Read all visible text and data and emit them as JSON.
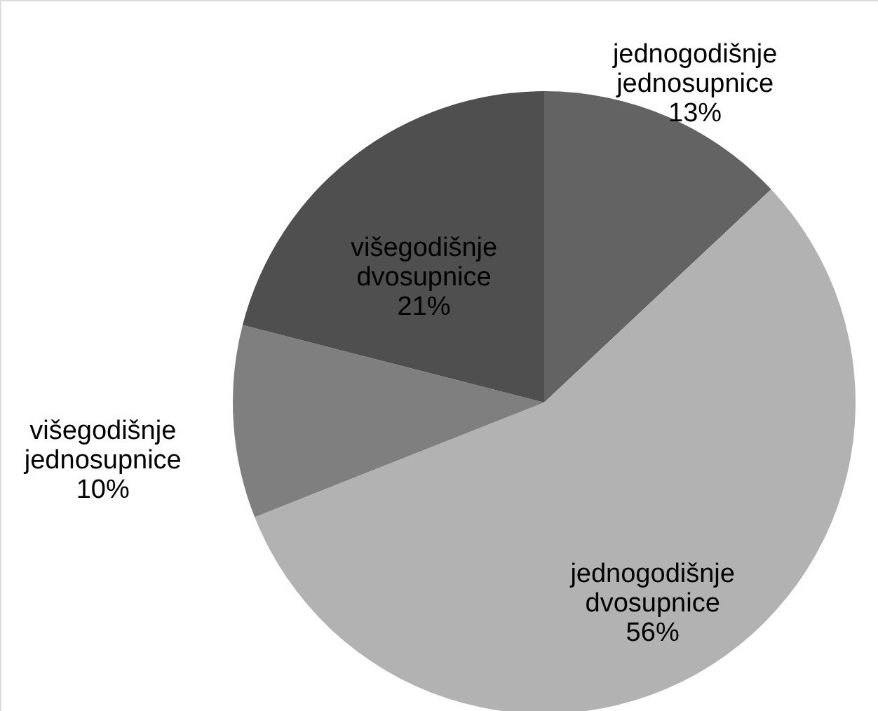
{
  "chart_data": {
    "type": "pie",
    "categories": [
      "jednogodišnje jednosupnice",
      "jednogodišnje dvosupnice",
      "višegodišnje jednosupnice",
      "višegodišnje dvosupnice"
    ],
    "values": [
      13,
      56,
      10,
      21
    ],
    "colors": [
      "#636363",
      "#b2b2b2",
      "#7f7f7f",
      "#4f4f4f"
    ],
    "value_labels": [
      "13%",
      "56%",
      "10%",
      "21%"
    ]
  }
}
